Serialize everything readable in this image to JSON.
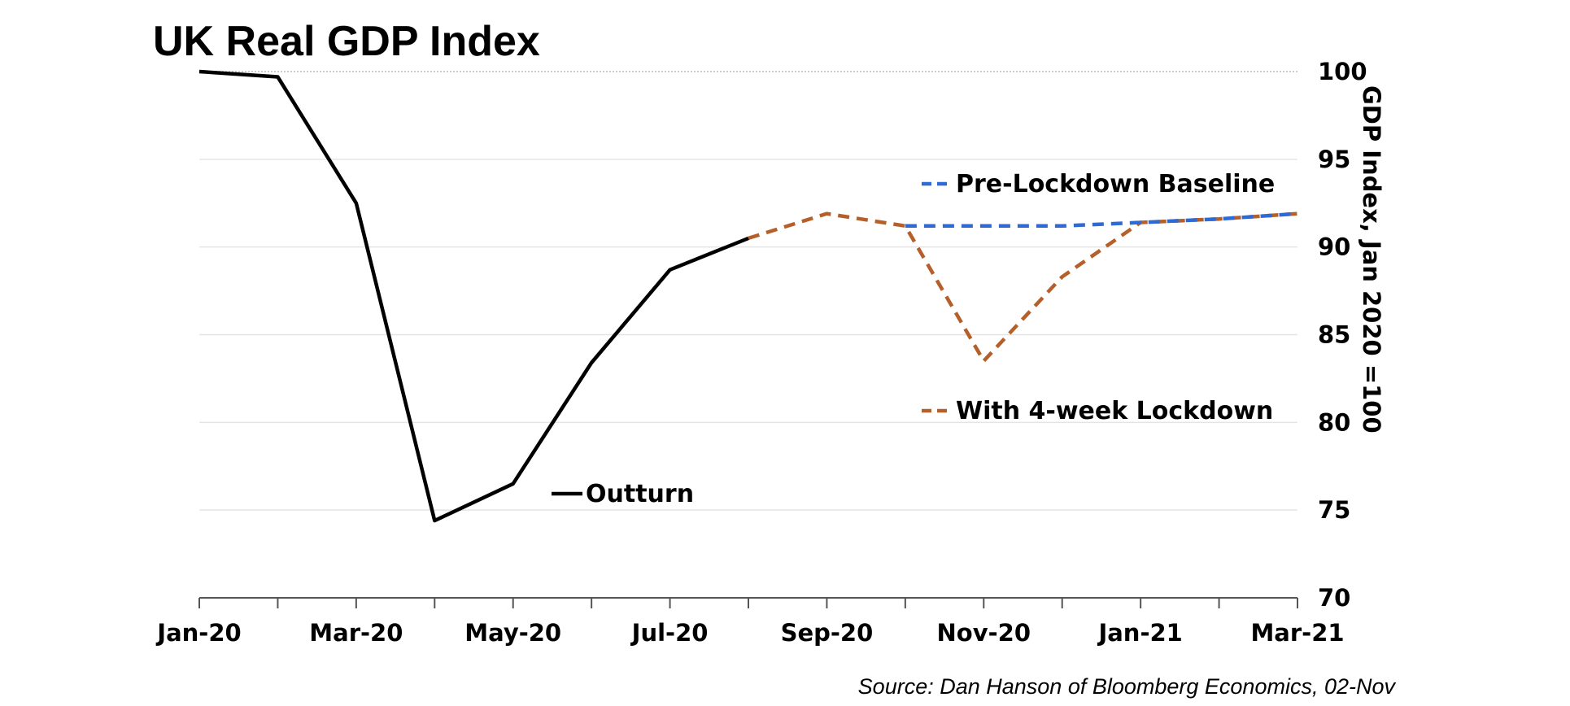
{
  "chart_data": {
    "type": "line",
    "title": "UK Real GDP Index",
    "ylabel": "GDP Index, Jan 2020 =100",
    "xlabel": "",
    "source": "Source: Dan Hanson of Bloomberg Economics, 02-Nov",
    "ylim": [
      70,
      100
    ],
    "yticks": [
      70,
      75,
      80,
      85,
      90,
      95,
      100
    ],
    "x": [
      "Jan-20",
      "Feb-20",
      "Mar-20",
      "Apr-20",
      "May-20",
      "Jun-20",
      "Jul-20",
      "Aug-20",
      "Sep-20",
      "Oct-20",
      "Nov-20",
      "Dec-20",
      "Jan-21",
      "Feb-21",
      "Mar-21"
    ],
    "xtick_labels": [
      "Jan-20",
      "Mar-20",
      "May-20",
      "Jul-20",
      "Sep-20",
      "Nov-20",
      "Jan-21",
      "Mar-21"
    ],
    "grid": true,
    "y_axis_side": "right",
    "series": [
      {
        "name": "Outturn",
        "color": "#000000",
        "dash": "solid",
        "values": [
          100.0,
          99.7,
          92.5,
          74.4,
          76.5,
          83.4,
          88.7,
          90.5,
          null,
          null,
          null,
          null,
          null,
          null,
          null
        ]
      },
      {
        "name": "Pre-Lockdown Baseline",
        "color": "#2e6ad6",
        "dash": "dashed",
        "values": [
          null,
          null,
          null,
          null,
          null,
          null,
          null,
          null,
          null,
          91.2,
          91.2,
          91.2,
          91.4,
          91.6,
          91.9
        ]
      },
      {
        "name": "With 4-week Lockdown",
        "color": "#b5602a",
        "dash": "dashed",
        "values": [
          null,
          null,
          null,
          null,
          null,
          null,
          null,
          90.5,
          91.9,
          91.2,
          83.5,
          88.3,
          91.4,
          91.6,
          91.9
        ]
      }
    ]
  }
}
